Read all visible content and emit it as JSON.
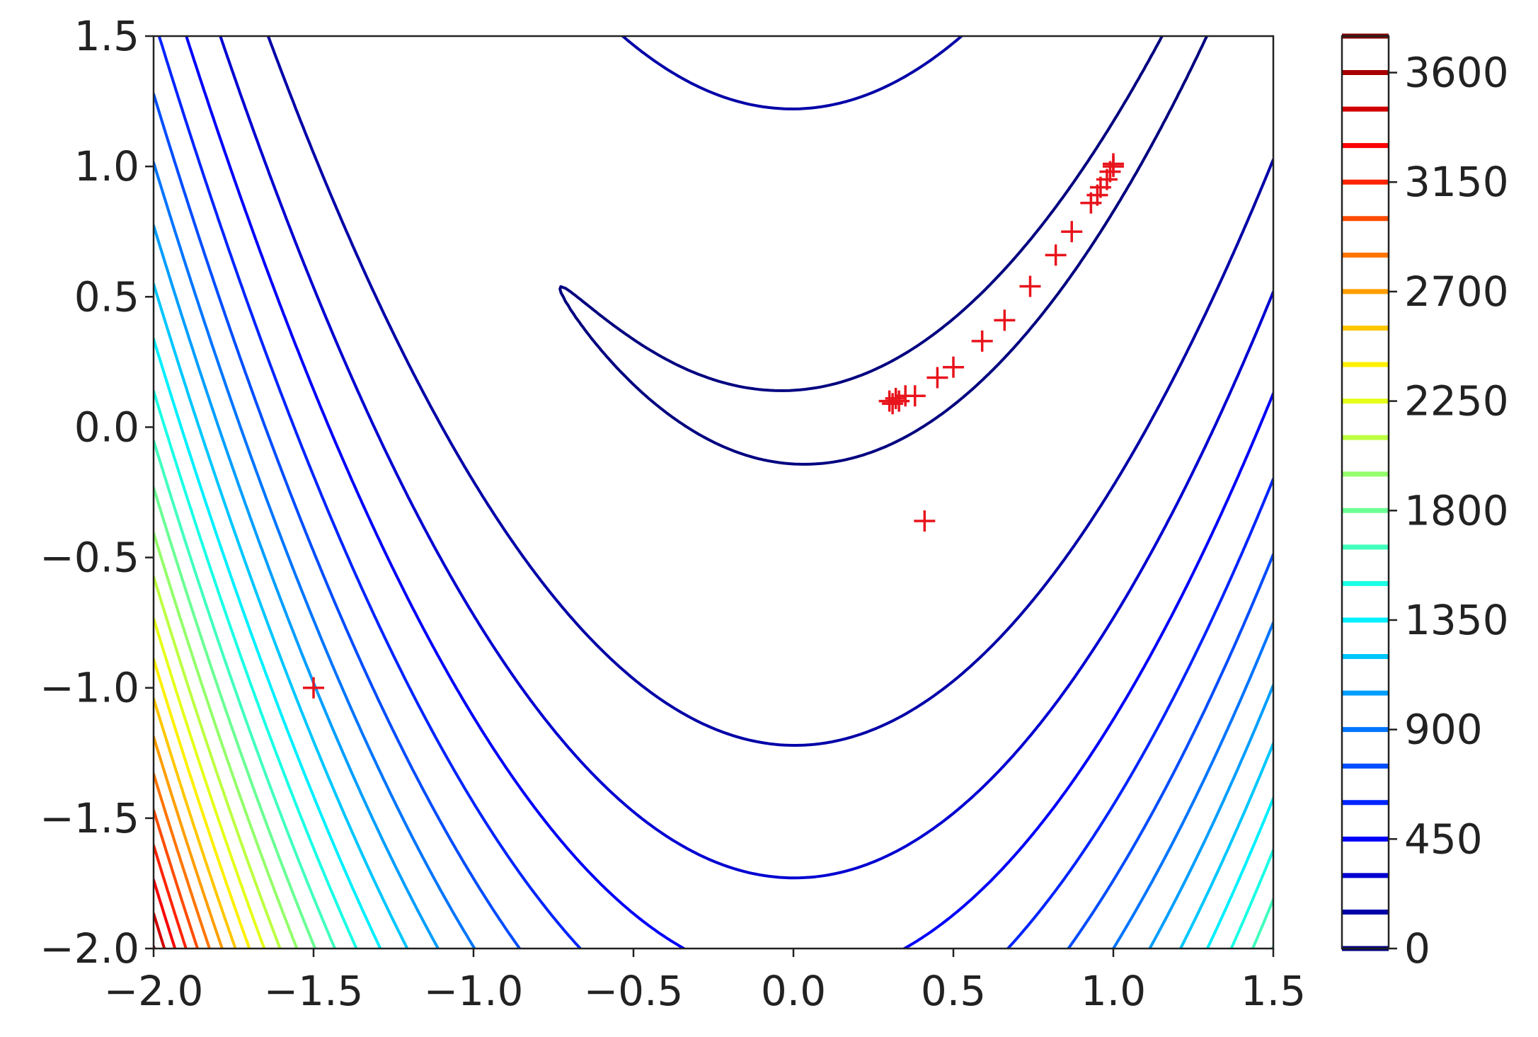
{
  "chart_data": {
    "type": "contour",
    "function": "rosenbrock",
    "title": "",
    "xlabel": "",
    "ylabel": "",
    "xlim": [
      -2.0,
      1.5
    ],
    "ylim": [
      -2.0,
      1.5
    ],
    "x_ticks": [
      "−2.0",
      "−1.5",
      "−1.0",
      "−0.5",
      "0.0",
      "0.5",
      "1.0",
      "1.5"
    ],
    "x_tick_values": [
      -2.0,
      -1.5,
      -1.0,
      -0.5,
      0.0,
      0.5,
      1.0,
      1.5
    ],
    "y_ticks": [
      "−2.0",
      "−1.5",
      "−1.0",
      "−0.5",
      "0.0",
      "0.5",
      "1.0",
      "1.5"
    ],
    "y_tick_values": [
      -2.0,
      -1.5,
      -1.0,
      -0.5,
      0.0,
      0.5,
      1.0,
      1.5
    ],
    "contour_levels": [
      0,
      150,
      300,
      450,
      600,
      750,
      900,
      1050,
      1200,
      1350,
      1500,
      1650,
      1800,
      1950,
      2100,
      2250,
      2400,
      2550,
      2700,
      2850,
      3000,
      3150,
      3300,
      3450,
      3600,
      3750
    ],
    "colormap": "jet",
    "colorbar": {
      "min": 0,
      "max": 3750,
      "ticks": [
        0,
        450,
        900,
        1350,
        1800,
        2250,
        2700,
        3150,
        3600
      ],
      "tick_labels": [
        "0",
        "450",
        "900",
        "1350",
        "1800",
        "2250",
        "2700",
        "3150",
        "3600"
      ]
    },
    "series": [
      {
        "marker": "+",
        "color": "#e8141c",
        "points": [
          [
            -1.5,
            -1.0
          ],
          [
            0.41,
            -0.36
          ],
          [
            0.3,
            0.1
          ],
          [
            0.31,
            0.09
          ],
          [
            0.32,
            0.11
          ],
          [
            0.33,
            0.1
          ],
          [
            0.35,
            0.12
          ],
          [
            0.38,
            0.12
          ],
          [
            0.45,
            0.19
          ],
          [
            0.5,
            0.23
          ],
          [
            0.59,
            0.33
          ],
          [
            0.66,
            0.41
          ],
          [
            0.74,
            0.54
          ],
          [
            0.82,
            0.66
          ],
          [
            0.87,
            0.75
          ],
          [
            0.93,
            0.86
          ],
          [
            0.95,
            0.89
          ],
          [
            0.96,
            0.92
          ],
          [
            0.98,
            0.95
          ],
          [
            0.99,
            0.98
          ],
          [
            1.0,
            1.0
          ],
          [
            1.0,
            1.01
          ]
        ]
      }
    ]
  }
}
